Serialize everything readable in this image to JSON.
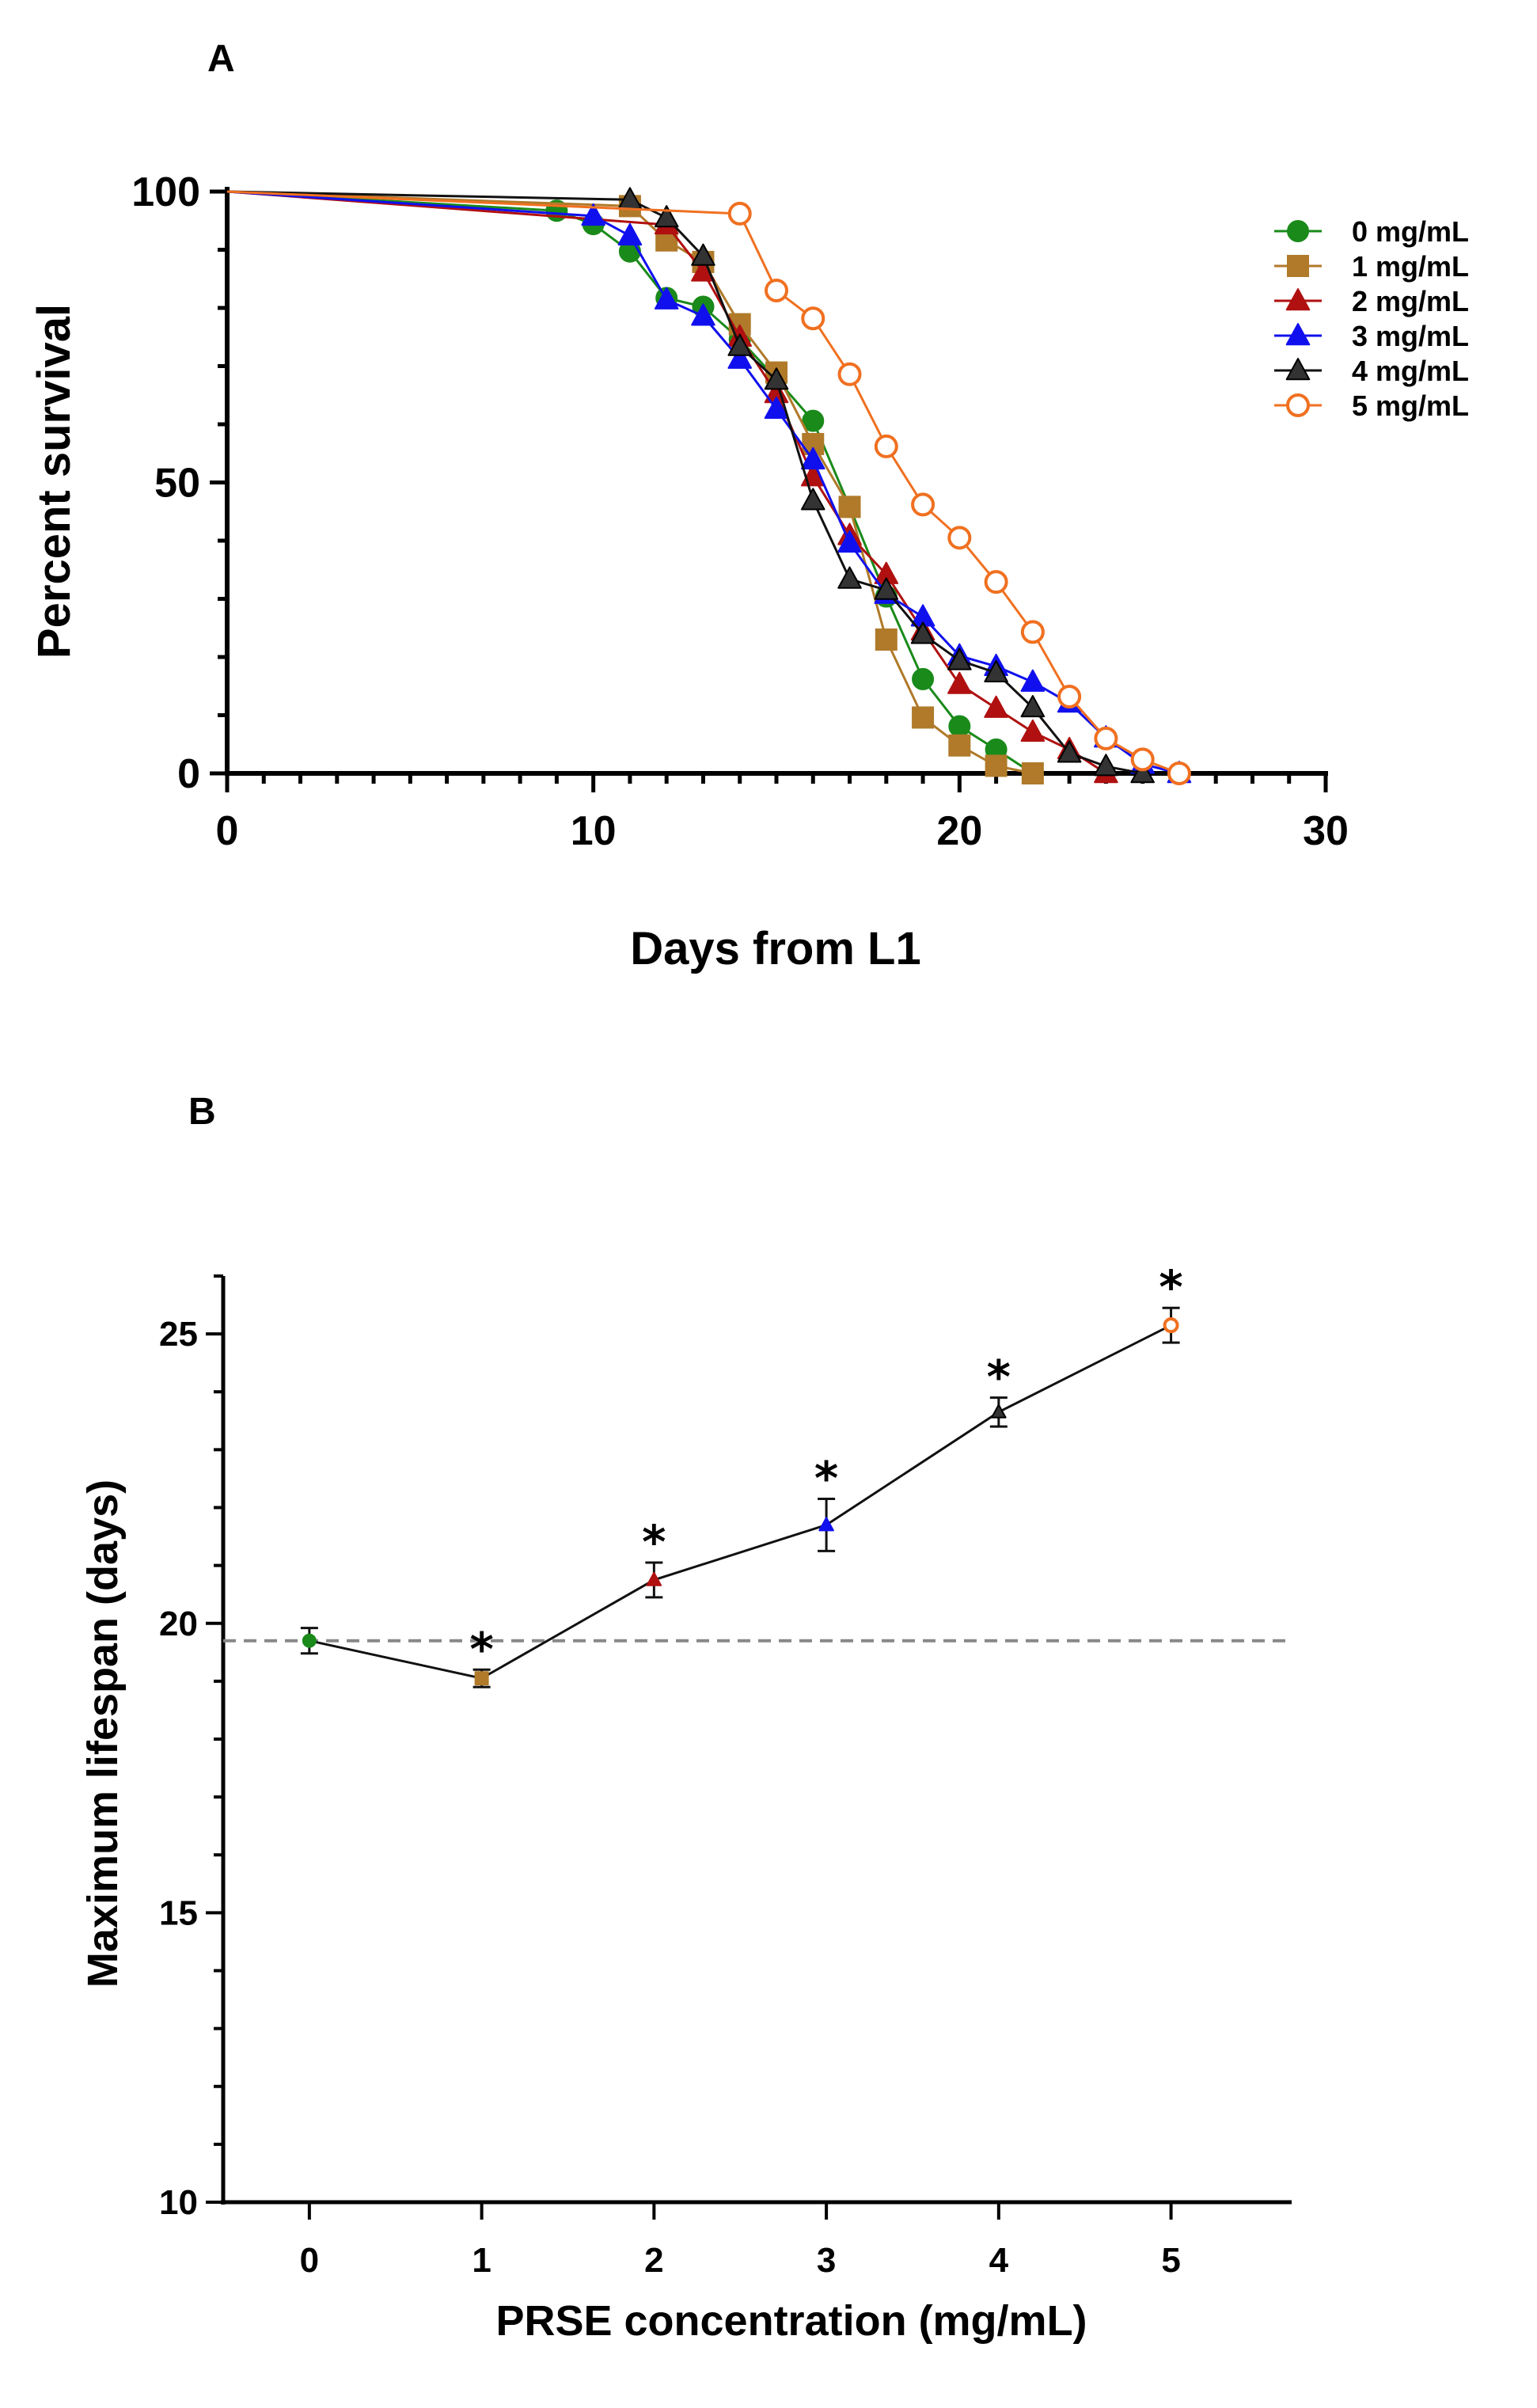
{
  "chart_data": [
    {
      "panel": "A",
      "type": "line",
      "title": "",
      "xlabel": "Days from L1",
      "ylabel": "Percent survival",
      "xlim": [
        0,
        30
      ],
      "ylim": [
        0,
        100
      ],
      "xticks": [
        0,
        10,
        20,
        30
      ],
      "yticks": [
        0,
        50,
        100
      ],
      "legend_position": "top-right",
      "series": [
        {
          "name": "0 mg/mL",
          "color": "#1a8a1a",
          "marker": "circle",
          "filled": true,
          "x": [
            0,
            9,
            10,
            11,
            12,
            13,
            14,
            15,
            16,
            17,
            18,
            19,
            20,
            21,
            22
          ],
          "y": [
            100,
            96.7,
            94.4,
            89.7,
            81.7,
            80.2,
            74.6,
            67.8,
            60.6,
            45.8,
            30.4,
            16.2,
            8.1,
            4.1,
            0
          ]
        },
        {
          "name": "1 mg/mL",
          "color": "#b07a2a",
          "marker": "square",
          "filled": true,
          "x": [
            0,
            11,
            12,
            13,
            14,
            15,
            16,
            17,
            18,
            19,
            20,
            21,
            22
          ],
          "y": [
            100,
            97.5,
            91.6,
            87.9,
            77.2,
            68.9,
            56.6,
            45.8,
            23.0,
            9.6,
            4.8,
            1.3,
            0
          ]
        },
        {
          "name": "2 mg/mL",
          "color": "#b01010",
          "marker": "triangle",
          "filled": true,
          "x": [
            0,
            12,
            13,
            14,
            15,
            16,
            17,
            18,
            19,
            20,
            21,
            22,
            23,
            24
          ],
          "y": [
            100,
            94.3,
            86.2,
            75.0,
            65.3,
            51.0,
            40.9,
            34.2,
            24.5,
            15.3,
            11.2,
            7.1,
            4.1,
            0
          ]
        },
        {
          "name": "3 mg/mL",
          "color": "#1010ee",
          "marker": "triangle",
          "filled": true,
          "x": [
            0,
            10,
            11,
            12,
            13,
            14,
            15,
            16,
            17,
            18,
            19,
            20,
            21,
            22,
            23,
            24,
            25,
            26
          ],
          "y": [
            100,
            95.8,
            92.4,
            81.4,
            78.6,
            71.2,
            62.6,
            53.9,
            39.6,
            30.8,
            26.9,
            20.2,
            18.4,
            15.7,
            12.1,
            6.1,
            1.6,
            0
          ]
        },
        {
          "name": "4 mg/mL",
          "color": "#333333",
          "marker": "triangle",
          "filled": true,
          "x": [
            0,
            11,
            12,
            13,
            14,
            15,
            16,
            17,
            18,
            19,
            20,
            21,
            22,
            23,
            24,
            25
          ],
          "y": [
            100,
            98.6,
            95.5,
            88.9,
            73.4,
            67.6,
            46.9,
            33.4,
            31.5,
            23.9,
            19.4,
            17.3,
            11.3,
            3.5,
            1.2,
            0
          ]
        },
        {
          "name": "5 mg/mL",
          "color": "#f07020",
          "marker": "circle",
          "filled": false,
          "x": [
            0,
            14,
            15,
            16,
            17,
            18,
            19,
            20,
            21,
            22,
            23,
            24,
            25,
            26
          ],
          "y": [
            100,
            96.2,
            83.0,
            78.2,
            68.6,
            56.2,
            46.2,
            40.5,
            32.9,
            24.3,
            13.2,
            6.0,
            2.4,
            0
          ]
        }
      ]
    },
    {
      "panel": "B",
      "type": "line",
      "title": "",
      "xlabel": "PRSE concentration (mg/mL)",
      "ylabel": "Maximum lifespan (days)",
      "xlim": [
        -0.5,
        5.7
      ],
      "ylim": [
        10,
        26
      ],
      "xticks": [
        0,
        1,
        2,
        3,
        4,
        5
      ],
      "yticks": [
        10,
        15,
        20,
        25
      ],
      "reference_line": 19.7,
      "significance_marker": "*",
      "points": [
        {
          "x": 0,
          "y": 19.7,
          "err": 0.22,
          "color": "#1a8a1a",
          "marker": "circle",
          "filled": true,
          "sig": false
        },
        {
          "x": 1,
          "y": 19.05,
          "err": 0.15,
          "color": "#b07a2a",
          "marker": "square",
          "filled": true,
          "sig": true
        },
        {
          "x": 2,
          "y": 20.75,
          "err": 0.3,
          "color": "#b01010",
          "marker": "triangle",
          "filled": true,
          "sig": true
        },
        {
          "x": 3,
          "y": 21.7,
          "err": 0.45,
          "color": "#1010ee",
          "marker": "triangle",
          "filled": true,
          "sig": true
        },
        {
          "x": 4,
          "y": 23.65,
          "err": 0.25,
          "color": "#333333",
          "marker": "triangle",
          "filled": true,
          "sig": true
        },
        {
          "x": 5,
          "y": 25.15,
          "err": 0.3,
          "color": "#f07020",
          "marker": "circle",
          "filled": false,
          "sig": true
        }
      ]
    }
  ]
}
